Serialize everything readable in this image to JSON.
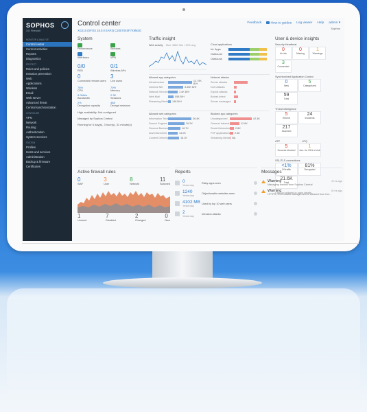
{
  "brand": {
    "name": "SOPHOS",
    "product": "XG Firewall"
  },
  "sidebar": {
    "sections": [
      {
        "title": "Monitor & Analyze",
        "items": [
          {
            "label": "Control center",
            "active": true
          },
          {
            "label": "Current activities"
          },
          {
            "label": "Reports"
          },
          {
            "label": "Diagnostics"
          }
        ]
      },
      {
        "title": "Protect",
        "items": [
          {
            "label": "Rules and policies"
          },
          {
            "label": "Intrusion prevention"
          },
          {
            "label": "Web"
          },
          {
            "label": "Applications"
          },
          {
            "label": "Wireless"
          },
          {
            "label": "Email"
          },
          {
            "label": "Web server"
          },
          {
            "label": "Advanced threat"
          },
          {
            "label": "Central synchronization"
          }
        ]
      },
      {
        "title": "Configure",
        "items": [
          {
            "label": "VPN"
          },
          {
            "label": "Network"
          },
          {
            "label": "Routing"
          },
          {
            "label": "Authentication"
          },
          {
            "label": "System services"
          }
        ]
      },
      {
        "title": "System",
        "items": [
          {
            "label": "Profiles"
          },
          {
            "label": "Hosts and services"
          },
          {
            "label": "Administration"
          },
          {
            "label": "Backup & firmware"
          },
          {
            "label": "Certificates"
          }
        ]
      }
    ]
  },
  "header": {
    "title": "Control center",
    "subtitle": "XG210 (SFOS 18.0.0 EAP3) C20070X0F7X9M2G",
    "links": {
      "feedback": "Feedback",
      "guides": "How-to guides",
      "logviewer": "Log viewer",
      "help": "Help",
      "admin": "admin ▾"
    },
    "admin_org": "Sophos"
  },
  "system": {
    "title": "System",
    "icons": [
      {
        "label": "Performance",
        "color": "#3aa34a"
      },
      {
        "label": "Services",
        "color": "#3aa34a"
      },
      {
        "label": "Interfaces",
        "color": "#2f7bc5"
      },
      {
        "label": "VPN",
        "color": "#3aa34a"
      }
    ],
    "stats": [
      {
        "value": "0/0",
        "label": "RED"
      },
      {
        "value": "0/1",
        "label": "Wireless APs"
      },
      {
        "value": "0",
        "label": "Connected remote users"
      },
      {
        "value": "3",
        "label": "Live users"
      }
    ],
    "metrics": [
      {
        "value": "78%",
        "label": "CPU"
      },
      {
        "value": "70%",
        "label": "Memory"
      },
      {
        "value": "5.0Mb/s",
        "label": "Bandwidth"
      },
      {
        "value": "2.3K",
        "label": "Sessions"
      },
      {
        "value": "2%",
        "label": "Decryption capacity"
      },
      {
        "value": "468",
        "label": "Decrypt sessions"
      }
    ],
    "ha": "High availability: Not configured",
    "managed": "Managed by Sophos Central",
    "uptime": "Running for 6 day(s), 3 hour(s), 31 minute(s)"
  },
  "traffic": {
    "title": "Traffic insight",
    "web_activity": "Web activity",
    "web_meta": "Max: 3660 Hits / 13% avg",
    "cloud_apps": "Cloud applications",
    "cloud_rows": [
      "Int. Apps",
      "Outbound",
      "Outbound"
    ],
    "allowed_app": "Allowed app categories",
    "allowed_app_rows": [
      {
        "name": "Infrastructure",
        "value": "12.79K B/H"
      },
      {
        "name": "General Net",
        "value": "3.35K B/H"
      },
      {
        "name": "Network Services",
        "value": "1.4K B/H"
      },
      {
        "name": "Web Mail",
        "value": "558 B/H"
      },
      {
        "name": "Streaming Media",
        "value": "148 B/H"
      }
    ],
    "network_attacks": "Network attacks",
    "attack_rows": [
      "Server attacks",
      "DoS Attacks",
      "Exploit attacks",
      "Botnet-Infect",
      "Server messages"
    ],
    "allowed_web": "Allowed web categories",
    "allowed_web_rows": [
      {
        "name": "Information Tech",
        "value": "38.4K"
      },
      {
        "name": "Search Engines",
        "value": "26.2K"
      },
      {
        "name": "General Business",
        "value": "18.7K"
      },
      {
        "name": "Advertisements",
        "value": "14.0K"
      },
      {
        "name": "Content Delivery",
        "value": "18.1K"
      }
    ],
    "blocked_app": "Blocked app categories",
    "blocked_rows": [
      {
        "name": "Uncategorized",
        "value": "42.3K"
      },
      {
        "name": "General Internet",
        "value": "12.6K"
      },
      {
        "name": "Social Networking",
        "value": "2.8K"
      },
      {
        "name": "P2P applications",
        "value": "2.4K"
      },
      {
        "name": "Streaming Media",
        "value": "NA"
      }
    ]
  },
  "user_device": {
    "title": "User & device insights",
    "heartbeat": "Security Heartbeat",
    "heartbeat_tiles": [
      {
        "value": "0",
        "label": "At risk",
        "color": "#d9342b"
      },
      {
        "value": "0",
        "label": "Missing",
        "color": "#d9342b"
      },
      {
        "value": "1",
        "label": "Warnings",
        "color": "#f0a030"
      },
      {
        "value": "3",
        "label": "Connected",
        "color": "#3aa34a"
      }
    ],
    "sac": "Synchronized Application Control",
    "sac_tiles": [
      {
        "value": "0",
        "label": "New",
        "color": "#2f7bc5"
      },
      {
        "value": "5",
        "label": "Categorized",
        "color": "#3aa34a"
      },
      {
        "value": "59",
        "label": "Total",
        "color": "#444"
      }
    ],
    "threat": "Threat intelligence",
    "threat_tiles": [
      {
        "value": "5",
        "label": "Recent",
        "color": "#d9342b"
      },
      {
        "value": "24",
        "label": "Incidents",
        "color": "#444"
      },
      {
        "value": "217",
        "label": "Scanned",
        "color": "#444"
      }
    ],
    "atp": "ATP",
    "utq": "UTQ",
    "atp_tiles": [
      {
        "value": "5",
        "label": "Sources blocked",
        "color": "#d9342b"
      },
      {
        "value": "1",
        "label": "Acc. for 99% of risk",
        "color": "#f0a030"
      }
    ],
    "ssl": "SSL/TLS connections",
    "ssl_tiles": [
      {
        "value": "<1%",
        "label": "Of traffic",
        "color": "#2f7bc5"
      },
      {
        "value": "81%",
        "label": "Decrypted",
        "color": "#444"
      },
      {
        "value": "21.6K",
        "label": "Total",
        "color": "#444"
      }
    ],
    "hint": "Click on widgets to open details"
  },
  "firewall": {
    "title": "Active firewall rules",
    "top": [
      {
        "value": "0",
        "label": "WAF"
      },
      {
        "value": "3",
        "label": "User"
      },
      {
        "value": "8",
        "label": "Network"
      },
      {
        "value": "11",
        "label": "Scanned"
      }
    ],
    "bottom": [
      {
        "value": "1",
        "label": "Unused"
      },
      {
        "value": "7",
        "label": "Disabled"
      },
      {
        "value": "2",
        "label": "Changed"
      },
      {
        "value": "0",
        "label": "New"
      }
    ]
  },
  "reports": {
    "title": "Reports",
    "items": [
      {
        "value": "0",
        "text": "Risky apps seen",
        "time": "Yesterday"
      },
      {
        "value": "1240",
        "text": "Objectionable websites seen",
        "time": "Yesterday"
      },
      {
        "value": "4102 MB",
        "text": "Used by top 10 web users",
        "time": "Yesterday"
      },
      {
        "value": "2",
        "text": "Intrusion attacks",
        "time": "Yesterday"
      }
    ]
  },
  "messages": {
    "title": "Messages",
    "items": [
      {
        "level": "Warning",
        "text": "Managing firewall from Sophos Central",
        "time": "3 hrs ago"
      },
      {
        "level": "Warning",
        "text": "HTTPS, SSH based management is allowed from the...",
        "time": "6 hrs ago"
      }
    ]
  }
}
